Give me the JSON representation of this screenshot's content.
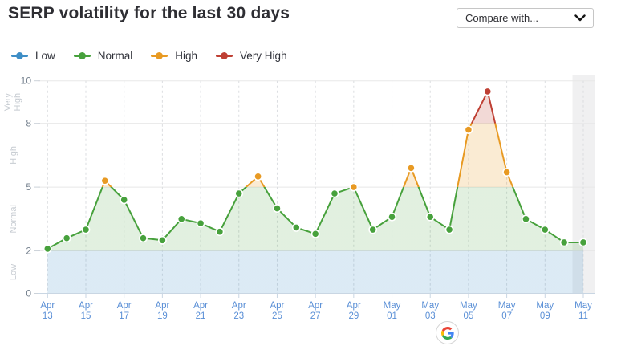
{
  "header": {
    "title": "SERP volatility for the last 30 days",
    "compare_dropdown": {
      "label": "Compare with...",
      "icon": "chevron-down-icon"
    }
  },
  "colors": {
    "x_axis_label": "#5a8fd6",
    "y_axis_label": "#76828f",
    "zone_label": "#c7ccd2",
    "grid_line": "#e8e8e8",
    "dashed_grid_line": "#dbdde0",
    "axis_line": "#c9d6e3",
    "highlight_band": "#f0f0f1"
  },
  "chart_data": {
    "type": "line",
    "title": "SERP volatility for the last 30 days",
    "x": [
      "Apr 13",
      "Apr 14",
      "Apr 15",
      "Apr 16",
      "Apr 17",
      "Apr 18",
      "Apr 19",
      "Apr 20",
      "Apr 21",
      "Apr 22",
      "Apr 23",
      "Apr 24",
      "Apr 25",
      "Apr 26",
      "Apr 27",
      "Apr 28",
      "Apr 29",
      "Apr 30",
      "May 01",
      "May 02",
      "May 03",
      "May 04",
      "May 05",
      "May 06",
      "May 07",
      "May 08",
      "May 09",
      "May 10",
      "May 11"
    ],
    "values": [
      2.1,
      2.6,
      3.0,
      5.3,
      4.4,
      2.6,
      2.5,
      3.5,
      3.3,
      2.9,
      4.7,
      5.5,
      4.0,
      3.1,
      2.8,
      4.7,
      5.0,
      3.0,
      3.6,
      5.9,
      3.6,
      3.0,
      7.7,
      9.5,
      5.7,
      3.5,
      3.0,
      2.4,
      2.4
    ],
    "ylim": [
      0,
      10
    ],
    "yticks": [
      0,
      2,
      5,
      8,
      10
    ],
    "x_label_every": 2,
    "grid": true,
    "legend_position": "top",
    "highlight_last_column": true,
    "zones": [
      {
        "label": "Low",
        "from": 0,
        "to": 2,
        "color": "#3e8ec6",
        "fill": "rgba(62,142,198,0.18)"
      },
      {
        "label": "Normal",
        "from": 2,
        "to": 5,
        "color": "#47a13c",
        "fill": "rgba(71,161,60,0.16)"
      },
      {
        "label": "High",
        "from": 5,
        "to": 8,
        "color": "#e89a23",
        "fill": "rgba(232,154,35,0.20)"
      },
      {
        "label": "Very High",
        "from": 8,
        "to": 10,
        "color": "#bf4034",
        "fill": "rgba(191,64,52,0.20)"
      }
    ]
  },
  "footer": {
    "search_engine_icon": "google-g-icon"
  }
}
